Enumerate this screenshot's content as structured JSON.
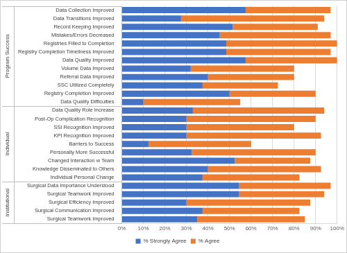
{
  "chart_data": {
    "type": "bar",
    "orientation": "horizontal",
    "stacked": true,
    "grid": true,
    "legend": "bottom",
    "categories": [
      "Data Collection Improved",
      "Data Transitions Improved",
      "Record Keeping Improved",
      "Mistakes/Errors Decreased",
      "Registries Filled to Completion",
      "Registry Completion Timeliness Improved",
      "Data Quality Improved",
      "Volume Data Improved",
      "Referral Data Improved",
      "SSC Utilized Completely",
      "Registry Completion Improved",
      "Data Quality Difficulties",
      "Data Quality Role Increase",
      "Post-Op Complication Recognition",
      "SSI Recognition Improved",
      "KPI Recognition Improved",
      "Barriers to Success",
      "Personally More Successful",
      "Changed Interaction w Team",
      "Knowledge Disseminated to Others",
      "Individual Personal Change",
      "Surgical Data Importance Understood",
      "Surgical Teamwork Improved",
      "Surgical Efficiency Improved",
      "Surgical Communication Improved",
      "Surgical Teamwork Improved"
    ],
    "category_groups": [
      "Program Success",
      "Program Success",
      "Program Success",
      "Program Success",
      "Program Success",
      "Program Success",
      "Program Success",
      "Program Success",
      "Program Success",
      "Program Success",
      "Program Success",
      "Program Success",
      "Individual",
      "Individual",
      "Individual",
      "Individual",
      "Individual",
      "Individual",
      "Individual",
      "Individual",
      "Individual",
      "Institutional",
      "Institutional",
      "Institutional",
      "Institutional",
      "Institutional"
    ],
    "series": [
      {
        "name": "% Strongly Agree",
        "color": "#4472c4",
        "values": [
          57.5,
          27.5,
          51.5,
          45.5,
          48.5,
          48.5,
          57.5,
          32,
          40,
          37.5,
          50,
          10,
          33,
          30,
          30,
          30,
          12.5,
          32.5,
          52.5,
          40,
          37.5,
          54.5,
          54.5,
          30,
          37.5,
          35
        ]
      },
      {
        "name": "% Agree",
        "color": "#ed7d31",
        "values": [
          39.5,
          66.5,
          39.5,
          51.5,
          51.5,
          48.5,
          42.5,
          48,
          40,
          35,
          40,
          45,
          61,
          60,
          50,
          62.5,
          47.5,
          57.5,
          35,
          52.5,
          45,
          42.5,
          39.5,
          57.5,
          45,
          50
        ]
      }
    ],
    "xlim": [
      0,
      100
    ],
    "xticks": [
      {
        "value": 0,
        "label": "0%"
      },
      {
        "value": 10,
        "label": "10%"
      },
      {
        "value": 20,
        "label": "20%"
      },
      {
        "value": 30,
        "label": "30%"
      },
      {
        "value": 40,
        "label": "40%"
      },
      {
        "value": 50,
        "label": "50%"
      },
      {
        "value": 60,
        "label": "60%"
      },
      {
        "value": 70,
        "label": "70%"
      },
      {
        "value": 80,
        "label": "80%"
      },
      {
        "value": 90,
        "label": "90%"
      },
      {
        "value": 100,
        "label": "100%"
      }
    ]
  }
}
